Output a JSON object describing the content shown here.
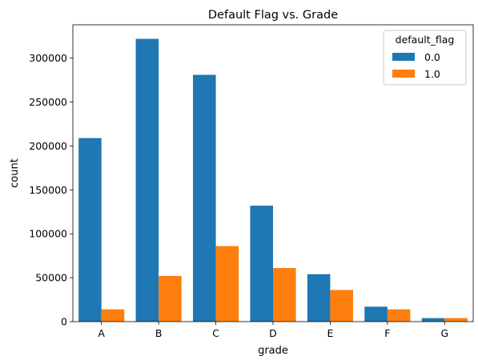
{
  "chart_data": {
    "type": "bar",
    "title": "Default Flag vs. Grade",
    "xlabel": "grade",
    "ylabel": "count",
    "categories": [
      "A",
      "B",
      "C",
      "D",
      "E",
      "F",
      "G"
    ],
    "series": [
      {
        "name": "0.0",
        "color": "#1f77b4",
        "values": [
          209000,
          322000,
          281000,
          132000,
          54000,
          17000,
          4000
        ]
      },
      {
        "name": "1.0",
        "color": "#ff7f0e",
        "values": [
          14000,
          52000,
          86000,
          61000,
          36000,
          14000,
          4000
        ]
      }
    ],
    "ylim": [
      0,
      338000
    ],
    "yticks": [
      0,
      50000,
      100000,
      150000,
      200000,
      250000,
      300000
    ],
    "legend": {
      "title": "default_flag",
      "position": "top-right"
    },
    "grid": false
  }
}
